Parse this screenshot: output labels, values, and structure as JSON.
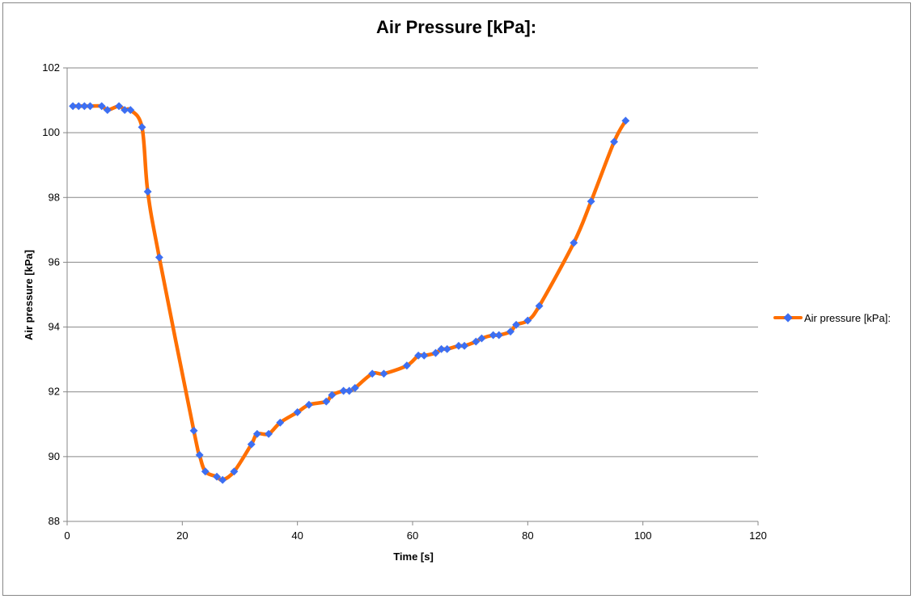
{
  "chart_data": {
    "type": "line",
    "title": "Air Pressure [kPa]:",
    "xlabel": "Time [s]",
    "ylabel": "Air pressure [kPa]",
    "xlim": [
      0,
      120
    ],
    "ylim": [
      88,
      102
    ],
    "x_ticks": [
      "0",
      "20",
      "40",
      "60",
      "80",
      "100",
      "120"
    ],
    "y_ticks": [
      "88",
      "90",
      "92",
      "94",
      "96",
      "98",
      "100",
      "102"
    ],
    "grid": true,
    "legend_position": "right",
    "series": [
      {
        "name": "Air pressure [kPa]:",
        "line_color": "#FF6F00",
        "marker_color": "#3D6FF2",
        "marker": "diamond",
        "points": [
          [
            1,
            100.82
          ],
          [
            2,
            100.82
          ],
          [
            3,
            100.82
          ],
          [
            4,
            100.82
          ],
          [
            6,
            100.82
          ],
          [
            7,
            100.7
          ],
          [
            9,
            100.82
          ],
          [
            10,
            100.7
          ],
          [
            11,
            100.7
          ],
          [
            13,
            100.17
          ],
          [
            14,
            98.18
          ],
          [
            16,
            96.15
          ],
          [
            22,
            90.8
          ],
          [
            23,
            90.05
          ],
          [
            24,
            89.54
          ],
          [
            26,
            89.38
          ],
          [
            27,
            89.28
          ],
          [
            29,
            89.54
          ],
          [
            32,
            90.38
          ],
          [
            33,
            90.7
          ],
          [
            35,
            90.7
          ],
          [
            37,
            91.05
          ],
          [
            40,
            91.37
          ],
          [
            42,
            91.6
          ],
          [
            45,
            91.7
          ],
          [
            46,
            91.9
          ],
          [
            48,
            92.03
          ],
          [
            49,
            92.03
          ],
          [
            50,
            92.12
          ],
          [
            53,
            92.56
          ],
          [
            55,
            92.56
          ],
          [
            59,
            92.81
          ],
          [
            61,
            93.12
          ],
          [
            62,
            93.12
          ],
          [
            64,
            93.2
          ],
          [
            65,
            93.32
          ],
          [
            66,
            93.32
          ],
          [
            68,
            93.42
          ],
          [
            69,
            93.42
          ],
          [
            71,
            93.55
          ],
          [
            72,
            93.65
          ],
          [
            74,
            93.75
          ],
          [
            75,
            93.75
          ],
          [
            77,
            93.86
          ],
          [
            78,
            94.07
          ],
          [
            80,
            94.2
          ],
          [
            82,
            94.65
          ],
          [
            88,
            96.6
          ],
          [
            91,
            97.88
          ],
          [
            95,
            99.72
          ],
          [
            97,
            100.37
          ]
        ]
      }
    ]
  }
}
